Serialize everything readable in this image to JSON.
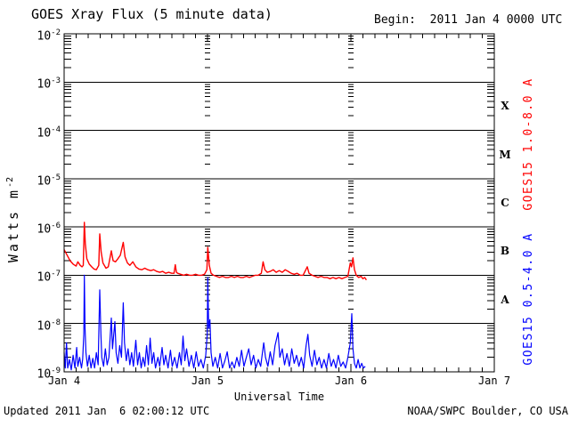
{
  "footer": {
    "updated": "Updated 2011 Jan  6 02:00:12 UTC",
    "source": "NOAA/SWPC Boulder, CO USA"
  },
  "chart_data": {
    "type": "line",
    "title": "GOES Xray Flux (5 minute data)",
    "begin_label": "Begin:  2011 Jan 4 0000 UTC",
    "xlabel": "Universal Time",
    "ylabel": {
      "base": "Watts m",
      "exponent": "-2"
    },
    "x_unit": "hours since 2011 Jan 4 0000 UTC",
    "xlim_hours": [
      0,
      72
    ],
    "ylim": [
      1e-09,
      0.01
    ],
    "yscale": "log",
    "ytick_exponents": [
      -2,
      -3,
      -4,
      -5,
      -6,
      -7,
      -8,
      -9
    ],
    "xticks": [
      {
        "hours": 0,
        "label": "Jan 4"
      },
      {
        "hours": 24,
        "label": "Jan 5"
      },
      {
        "hours": 48,
        "label": "Jan 6"
      },
      {
        "hours": 72,
        "label": "Jan 7"
      }
    ],
    "minor_xtick_step_hours": 2,
    "day_line_hours": [
      24,
      48
    ],
    "flare_classes": [
      {
        "label": "X",
        "center_exponent": -3.5
      },
      {
        "label": "M",
        "center_exponent": -4.5
      },
      {
        "label": "C",
        "center_exponent": -5.5
      },
      {
        "label": "B",
        "center_exponent": -6.5
      },
      {
        "label": "A",
        "center_exponent": -7.5
      }
    ],
    "legend_position": "right-rotated",
    "series": [
      {
        "name": "GOES15 1.0-8.0 A",
        "color": "#ff0000",
        "stroke_width": 1.4,
        "points": [
          [
            0,
            3.4e-07
          ],
          [
            0.5,
            2.6e-07
          ],
          [
            1,
            2e-07
          ],
          [
            1.5,
            1.7e-07
          ],
          [
            2,
            1.55e-07
          ],
          [
            2.3,
            1.9e-07
          ],
          [
            2.7,
            1.6e-07
          ],
          [
            3,
            1.5e-07
          ],
          [
            3.2,
            1.6e-07
          ],
          [
            3.38,
            1.25e-06
          ],
          [
            3.55,
            4.5e-07
          ],
          [
            3.8,
            2.2e-07
          ],
          [
            4.2,
            1.7e-07
          ],
          [
            4.6,
            1.5e-07
          ],
          [
            5,
            1.35e-07
          ],
          [
            5.4,
            1.3e-07
          ],
          [
            5.8,
            1.6e-07
          ],
          [
            5.96,
            7.2e-07
          ],
          [
            6.2,
            3e-07
          ],
          [
            6.5,
            1.8e-07
          ],
          [
            7,
            1.4e-07
          ],
          [
            7.4,
            1.5e-07
          ],
          [
            7.9,
            3.2e-07
          ],
          [
            8.2,
            2e-07
          ],
          [
            8.6,
            1.9e-07
          ],
          [
            9,
            2.2e-07
          ],
          [
            9.4,
            2.6e-07
          ],
          [
            9.9,
            4.8e-07
          ],
          [
            10.2,
            2.4e-07
          ],
          [
            10.6,
            1.8e-07
          ],
          [
            11,
            1.6e-07
          ],
          [
            11.5,
            1.9e-07
          ],
          [
            12,
            1.5e-07
          ],
          [
            12.5,
            1.35e-07
          ],
          [
            13,
            1.3e-07
          ],
          [
            13.5,
            1.4e-07
          ],
          [
            14,
            1.3e-07
          ],
          [
            14.5,
            1.25e-07
          ],
          [
            15,
            1.3e-07
          ],
          [
            15.5,
            1.2e-07
          ],
          [
            16,
            1.15e-07
          ],
          [
            16.5,
            1.2e-07
          ],
          [
            17,
            1.1e-07
          ],
          [
            17.5,
            1.15e-07
          ],
          [
            18,
            1.1e-07
          ],
          [
            18.4,
            1.1e-07
          ],
          [
            18.6,
            1.65e-07
          ],
          [
            18.8,
            1.15e-07
          ],
          [
            19,
            1.1e-07
          ],
          [
            19.5,
            1.05e-07
          ],
          [
            20,
            1e-07
          ],
          [
            20.5,
            1.05e-07
          ],
          [
            21,
            1e-07
          ],
          [
            21.5,
            1e-07
          ],
          [
            22,
            1.05e-07
          ],
          [
            22.5,
            1e-07
          ],
          [
            23,
            1e-07
          ],
          [
            23.5,
            1.05e-07
          ],
          [
            23.9,
            1.3e-07
          ],
          [
            24.05,
            3.8e-07
          ],
          [
            24.3,
            1.6e-07
          ],
          [
            24.6,
            1.1e-07
          ],
          [
            25,
            1e-07
          ],
          [
            25.5,
            9.5e-08
          ],
          [
            26,
            9e-08
          ],
          [
            26.5,
            9.5e-08
          ],
          [
            27,
            9e-08
          ],
          [
            27.5,
            9e-08
          ],
          [
            28,
            9.5e-08
          ],
          [
            28.5,
            9e-08
          ],
          [
            29,
            9.5e-08
          ],
          [
            29.5,
            9e-08
          ],
          [
            30,
            9e-08
          ],
          [
            30.5,
            9.5e-08
          ],
          [
            31,
            9e-08
          ],
          [
            31.5,
            9.5e-08
          ],
          [
            32,
            1e-07
          ],
          [
            32.5,
            1e-07
          ],
          [
            33,
            1.1e-07
          ],
          [
            33.3,
            1.9e-07
          ],
          [
            33.6,
            1.3e-07
          ],
          [
            34,
            1.15e-07
          ],
          [
            34.5,
            1.2e-07
          ],
          [
            35,
            1.3e-07
          ],
          [
            35.5,
            1.15e-07
          ],
          [
            36,
            1.25e-07
          ],
          [
            36.5,
            1.15e-07
          ],
          [
            37,
            1.3e-07
          ],
          [
            37.5,
            1.2e-07
          ],
          [
            38,
            1.1e-07
          ],
          [
            38.5,
            1.05e-07
          ],
          [
            39,
            1.1e-07
          ],
          [
            39.5,
            1e-07
          ],
          [
            40,
            1e-07
          ],
          [
            40.7,
            1.5e-07
          ],
          [
            41,
            1.1e-07
          ],
          [
            41.5,
            1e-07
          ],
          [
            42,
            9.5e-08
          ],
          [
            42.5,
            9e-08
          ],
          [
            43,
            9.5e-08
          ],
          [
            43.5,
            9e-08
          ],
          [
            44,
            9e-08
          ],
          [
            44.5,
            8.5e-08
          ],
          [
            45,
            9e-08
          ],
          [
            45.5,
            8.5e-08
          ],
          [
            46,
            9e-08
          ],
          [
            46.5,
            8.5e-08
          ],
          [
            47,
            9e-08
          ],
          [
            47.5,
            9.5e-08
          ],
          [
            47.9,
            1.8e-07
          ],
          [
            48.1,
            1.5e-07
          ],
          [
            48.35,
            2.3e-07
          ],
          [
            48.6,
            1.3e-07
          ],
          [
            48.9,
            1e-07
          ],
          [
            49.3,
            9e-08
          ],
          [
            49.7,
            9.5e-08
          ],
          [
            50,
            8.5e-08
          ],
          [
            50.3,
            9e-08
          ],
          [
            50.6,
            8e-08
          ]
        ]
      },
      {
        "name": "GOES15 0.5-4.0 A",
        "color": "#0000ff",
        "stroke_width": 1.2,
        "points": [
          [
            0,
            2.5e-09
          ],
          [
            0.2,
            1.2e-09
          ],
          [
            0.4,
            4e-09
          ],
          [
            0.6,
            1.2e-09
          ],
          [
            0.9,
            1.8e-09
          ],
          [
            1.2,
            1.1e-09
          ],
          [
            1.5,
            2.2e-09
          ],
          [
            1.8,
            1.2e-09
          ],
          [
            2.1,
            3.2e-09
          ],
          [
            2.3,
            1.3e-09
          ],
          [
            2.6,
            2e-09
          ],
          [
            2.9,
            1.2e-09
          ],
          [
            3.1,
            1.8e-09
          ],
          [
            3.3,
            6e-09
          ],
          [
            3.38,
            1e-07
          ],
          [
            3.5,
            8e-09
          ],
          [
            3.65,
            2.5e-09
          ],
          [
            3.9,
            1.3e-09
          ],
          [
            4.2,
            2.2e-09
          ],
          [
            4.5,
            1.2e-09
          ],
          [
            4.8,
            1.9e-09
          ],
          [
            5.1,
            1.2e-09
          ],
          [
            5.4,
            2.5e-09
          ],
          [
            5.7,
            1.4e-09
          ],
          [
            5.96,
            5e-08
          ],
          [
            6.15,
            6e-09
          ],
          [
            6.3,
            2e-09
          ],
          [
            6.6,
            1.3e-09
          ],
          [
            6.9,
            3e-09
          ],
          [
            7.2,
            1.4e-09
          ],
          [
            7.5,
            2e-09
          ],
          [
            7.9,
            1.3e-08
          ],
          [
            8.1,
            3e-09
          ],
          [
            8.5,
            1.1e-08
          ],
          [
            8.7,
            2.5e-09
          ],
          [
            9,
            1.5e-09
          ],
          [
            9.3,
            3.5e-09
          ],
          [
            9.6,
            2e-09
          ],
          [
            9.9,
            2.7e-08
          ],
          [
            10.1,
            4e-09
          ],
          [
            10.4,
            1.7e-09
          ],
          [
            10.7,
            3e-09
          ],
          [
            11,
            1.4e-09
          ],
          [
            11.3,
            2.5e-09
          ],
          [
            11.6,
            1.3e-09
          ],
          [
            12,
            4.5e-09
          ],
          [
            12.3,
            1.4e-09
          ],
          [
            12.6,
            2.5e-09
          ],
          [
            12.9,
            1.2e-09
          ],
          [
            13.2,
            2e-09
          ],
          [
            13.5,
            1.3e-09
          ],
          [
            13.8,
            3.5e-09
          ],
          [
            14.1,
            1.4e-09
          ],
          [
            14.4,
            5e-09
          ],
          [
            14.7,
            1.5e-09
          ],
          [
            15,
            2.5e-09
          ],
          [
            15.3,
            1.2e-09
          ],
          [
            15.7,
            2e-09
          ],
          [
            16,
            1.3e-09
          ],
          [
            16.4,
            3.2e-09
          ],
          [
            16.7,
            1.4e-09
          ],
          [
            17,
            2.2e-09
          ],
          [
            17.4,
            1.2e-09
          ],
          [
            17.8,
            2.8e-09
          ],
          [
            18.1,
            1.3e-09
          ],
          [
            18.5,
            2e-09
          ],
          [
            18.9,
            1.2e-09
          ],
          [
            19.3,
            2.5e-09
          ],
          [
            19.6,
            1.4e-09
          ],
          [
            19.9,
            5.5e-09
          ],
          [
            20.2,
            1.7e-09
          ],
          [
            20.5,
            3e-09
          ],
          [
            20.9,
            1.3e-09
          ],
          [
            21.3,
            2.2e-09
          ],
          [
            21.7,
            1.2e-09
          ],
          [
            22.1,
            2.6e-09
          ],
          [
            22.5,
            1.3e-09
          ],
          [
            22.9,
            1.8e-09
          ],
          [
            23.3,
            1.2e-09
          ],
          [
            23.7,
            2.2e-09
          ],
          [
            23.95,
            6e-09
          ],
          [
            24.05,
            9e-08
          ],
          [
            24.2,
            8e-09
          ],
          [
            24.4,
            1.2e-08
          ],
          [
            24.6,
            2.5e-09
          ],
          [
            24.9,
            1.3e-09
          ],
          [
            25.3,
            2e-09
          ],
          [
            25.7,
            1.2e-09
          ],
          [
            26.1,
            2.4e-09
          ],
          [
            26.5,
            1.2e-09
          ],
          [
            26.9,
            1.7e-09
          ],
          [
            27.3,
            2.6e-09
          ],
          [
            27.7,
            1.2e-09
          ],
          [
            28.1,
            1.6e-09
          ],
          [
            28.5,
            1.2e-09
          ],
          [
            28.9,
            2e-09
          ],
          [
            29.3,
            1.3e-09
          ],
          [
            29.7,
            2.8e-09
          ],
          [
            30.1,
            1.3e-09
          ],
          [
            30.5,
            2e-09
          ],
          [
            30.9,
            3e-09
          ],
          [
            31.3,
            1.4e-09
          ],
          [
            31.7,
            2.2e-09
          ],
          [
            32.1,
            1.2e-09
          ],
          [
            32.5,
            1.8e-09
          ],
          [
            32.9,
            1.3e-09
          ],
          [
            33.4,
            4e-09
          ],
          [
            33.7,
            2e-09
          ],
          [
            34.1,
            1.3e-09
          ],
          [
            34.5,
            2.6e-09
          ],
          [
            34.9,
            1.4e-09
          ],
          [
            35.3,
            3.5e-09
          ],
          [
            35.8,
            6.5e-09
          ],
          [
            36.1,
            2e-09
          ],
          [
            36.5,
            3e-09
          ],
          [
            36.9,
            1.4e-09
          ],
          [
            37.3,
            2.4e-09
          ],
          [
            37.7,
            1.3e-09
          ],
          [
            38.1,
            3e-09
          ],
          [
            38.5,
            1.5e-09
          ],
          [
            38.9,
            2.2e-09
          ],
          [
            39.3,
            1.3e-09
          ],
          [
            39.7,
            2e-09
          ],
          [
            40.1,
            1.2e-09
          ],
          [
            40.5,
            3.5e-09
          ],
          [
            40.8,
            6e-09
          ],
          [
            41.1,
            2.2e-09
          ],
          [
            41.5,
            1.3e-09
          ],
          [
            41.9,
            2.8e-09
          ],
          [
            42.3,
            1.4e-09
          ],
          [
            42.7,
            2e-09
          ],
          [
            43.1,
            1.2e-09
          ],
          [
            43.5,
            1.8e-09
          ],
          [
            43.9,
            1.2e-09
          ],
          [
            44.3,
            2.4e-09
          ],
          [
            44.7,
            1.3e-09
          ],
          [
            45.1,
            1.8e-09
          ],
          [
            45.5,
            1.2e-09
          ],
          [
            45.9,
            2.2e-09
          ],
          [
            46.3,
            1.3e-09
          ],
          [
            46.7,
            1.6e-09
          ],
          [
            47.1,
            1.2e-09
          ],
          [
            47.5,
            2e-09
          ],
          [
            47.9,
            4e-09
          ],
          [
            48.15,
            1.6e-08
          ],
          [
            48.35,
            3e-09
          ],
          [
            48.6,
            1.5e-09
          ],
          [
            48.9,
            1.2e-09
          ],
          [
            49.2,
            1.8e-09
          ],
          [
            49.5,
            1.2e-09
          ],
          [
            49.8,
            1.5e-09
          ],
          [
            50.1,
            1.2e-09
          ],
          [
            50.4,
            1.3e-09
          ]
        ]
      }
    ]
  }
}
